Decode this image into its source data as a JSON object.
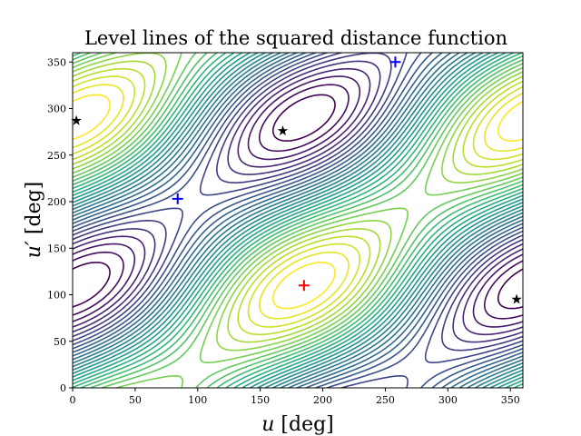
{
  "chart_data": {
    "type": "contour",
    "title": "Level lines of the squared distance function",
    "xlabel": "u [deg]",
    "xlabel_var": "u",
    "xlabel_unit": "[deg]",
    "ylabel": "u′ [deg]",
    "ylabel_var": "u′",
    "ylabel_unit": "[deg]",
    "xlim": [
      0,
      360
    ],
    "ylim": [
      0,
      360
    ],
    "xticks": [
      0,
      50,
      100,
      150,
      200,
      250,
      300,
      350
    ],
    "yticks": [
      0,
      50,
      100,
      150,
      200,
      250,
      300,
      350
    ],
    "colormap": "viridis",
    "n_levels": 30,
    "grid": false,
    "markers": {
      "maximum": {
        "color": "#ff0000",
        "symbol": "plus",
        "points": [
          [
            185,
            110
          ]
        ]
      },
      "saddles": {
        "color": "#0000ff",
        "symbol": "plus",
        "points": [
          [
            84,
            203
          ],
          [
            258,
            350
          ]
        ]
      },
      "minima": {
        "color": "#000000",
        "symbol": "star",
        "points": [
          [
            3,
            287
          ],
          [
            168,
            276
          ],
          [
            355,
            95
          ]
        ]
      }
    }
  }
}
